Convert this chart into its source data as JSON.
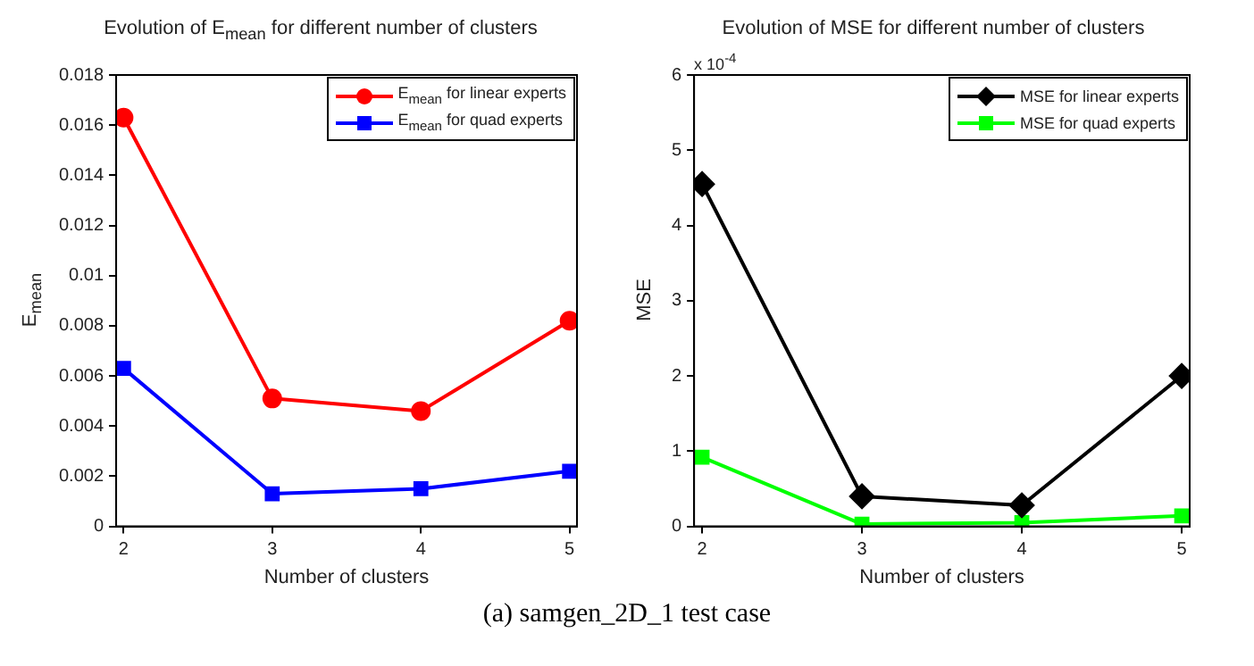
{
  "chart_data": [
    {
      "type": "line",
      "title": "Evolution of E$_{mean}$ for different number of clusters",
      "xlabel": "Number of clusters",
      "ylabel": "E$_{mean}$",
      "x": [
        2,
        3,
        4,
        5
      ],
      "xlim": [
        1.95,
        5.05
      ],
      "xticks": [
        2,
        3,
        4,
        5
      ],
      "ylim": [
        0,
        0.018
      ],
      "yticks": [
        0,
        0.002,
        0.004,
        0.006,
        0.008,
        0.01,
        0.012,
        0.014,
        0.016,
        0.018
      ],
      "grid": false,
      "legend": "top right",
      "line_style": "solid",
      "annotations": [
        "(a) samgen_2D_1 test case"
      ],
      "series": [
        {
          "name": "E$_{mean}$ for linear experts",
          "color": "#ff0000",
          "marker": "circle",
          "values": [
            0.0163,
            0.0051,
            0.0046,
            0.0082
          ]
        },
        {
          "name": "E$_{mean}$ for quad experts",
          "color": "#0000ff",
          "marker": "square",
          "values": [
            0.0063,
            0.0013,
            0.0015,
            0.0022
          ]
        }
      ]
    },
    {
      "type": "line",
      "title": "Evolution of MSE for different number of clusters",
      "xlabel": "Number of clusters",
      "ylabel": "MSE",
      "x": [
        2,
        3,
        4,
        5
      ],
      "xlim": [
        1.95,
        5.05
      ],
      "xticks": [
        2,
        3,
        4,
        5
      ],
      "ylim": [
        0,
        6
      ],
      "yticks": [
        0,
        1,
        2,
        3,
        4,
        5,
        6
      ],
      "grid": false,
      "legend": "top right",
      "line_style": "solid",
      "annotations": [
        "x 10$^{-4}$"
      ],
      "series": [
        {
          "name": "MSE for linear experts",
          "color": "#000000",
          "marker": "diamond",
          "values": [
            4.55,
            0.4,
            0.28,
            2.0
          ]
        },
        {
          "name": "MSE for quad experts",
          "color": "#00ff00",
          "marker": "square",
          "values": [
            0.92,
            0.03,
            0.05,
            0.14
          ]
        }
      ]
    }
  ]
}
